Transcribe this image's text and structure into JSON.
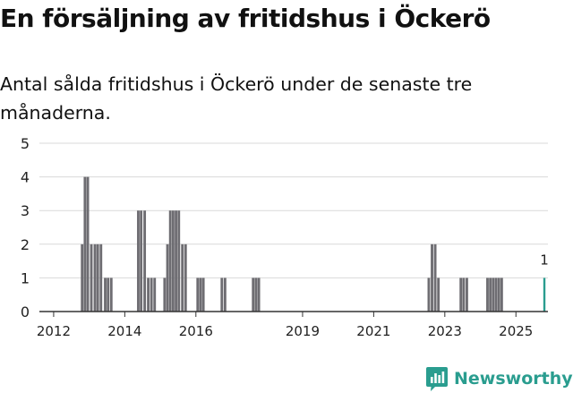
{
  "header": {
    "title": "En försäljning av fritidshus i Öckerö",
    "subtitle": "Antal sålda fritidshus i Öckerö under de senaste tre månaderna."
  },
  "brand": {
    "name": "Newsworthy",
    "icon": "newsworthy-logo-icon"
  },
  "colors": {
    "bar": "#6e6d72",
    "highlight": "#2a9d8f",
    "grid": "#d9d9d9",
    "axis": "#333333",
    "text": "#222222"
  },
  "chart_data": {
    "type": "bar",
    "title": "En försäljning av fritidshus i Öckerö",
    "xlabel": "",
    "ylabel": "",
    "ylim": [
      0,
      5
    ],
    "xlim": [
      2011.75,
      2025.9
    ],
    "yticks": [
      0,
      1,
      2,
      3,
      4,
      5
    ],
    "xticks": [
      2012,
      2014,
      2016,
      2019,
      2021,
      2023,
      2025
    ],
    "xtick_labels": [
      "2012",
      "2014",
      "2016",
      "2019",
      "2021",
      "2023",
      "2025"
    ],
    "grid": true,
    "bar_width": 0.072,
    "highlight": {
      "x": 2025.8,
      "value": 1,
      "label": "1"
    },
    "values": [
      {
        "x": 2012.8,
        "y": 2
      },
      {
        "x": 2012.88,
        "y": 4
      },
      {
        "x": 2012.96,
        "y": 4
      },
      {
        "x": 2013.06,
        "y": 2
      },
      {
        "x": 2013.16,
        "y": 2
      },
      {
        "x": 2013.24,
        "y": 2
      },
      {
        "x": 2013.33,
        "y": 2
      },
      {
        "x": 2013.45,
        "y": 1
      },
      {
        "x": 2013.53,
        "y": 1
      },
      {
        "x": 2013.62,
        "y": 1
      },
      {
        "x": 2014.38,
        "y": 3
      },
      {
        "x": 2014.46,
        "y": 3
      },
      {
        "x": 2014.56,
        "y": 3
      },
      {
        "x": 2014.66,
        "y": 1
      },
      {
        "x": 2014.75,
        "y": 1
      },
      {
        "x": 2014.84,
        "y": 1
      },
      {
        "x": 2015.12,
        "y": 1
      },
      {
        "x": 2015.2,
        "y": 2
      },
      {
        "x": 2015.28,
        "y": 3
      },
      {
        "x": 2015.36,
        "y": 3
      },
      {
        "x": 2015.44,
        "y": 3
      },
      {
        "x": 2015.52,
        "y": 3
      },
      {
        "x": 2015.62,
        "y": 2
      },
      {
        "x": 2015.71,
        "y": 2
      },
      {
        "x": 2016.05,
        "y": 1
      },
      {
        "x": 2016.13,
        "y": 1
      },
      {
        "x": 2016.21,
        "y": 1
      },
      {
        "x": 2016.73,
        "y": 1
      },
      {
        "x": 2016.82,
        "y": 1
      },
      {
        "x": 2017.61,
        "y": 1
      },
      {
        "x": 2017.69,
        "y": 1
      },
      {
        "x": 2017.77,
        "y": 1
      },
      {
        "x": 2022.55,
        "y": 1
      },
      {
        "x": 2022.64,
        "y": 2
      },
      {
        "x": 2022.73,
        "y": 2
      },
      {
        "x": 2022.82,
        "y": 1
      },
      {
        "x": 2023.45,
        "y": 1
      },
      {
        "x": 2023.53,
        "y": 1
      },
      {
        "x": 2023.62,
        "y": 1
      },
      {
        "x": 2024.2,
        "y": 1
      },
      {
        "x": 2024.28,
        "y": 1
      },
      {
        "x": 2024.36,
        "y": 1
      },
      {
        "x": 2024.44,
        "y": 1
      },
      {
        "x": 2024.52,
        "y": 1
      },
      {
        "x": 2024.6,
        "y": 1
      },
      {
        "x": 2025.8,
        "y": 1
      }
    ]
  }
}
